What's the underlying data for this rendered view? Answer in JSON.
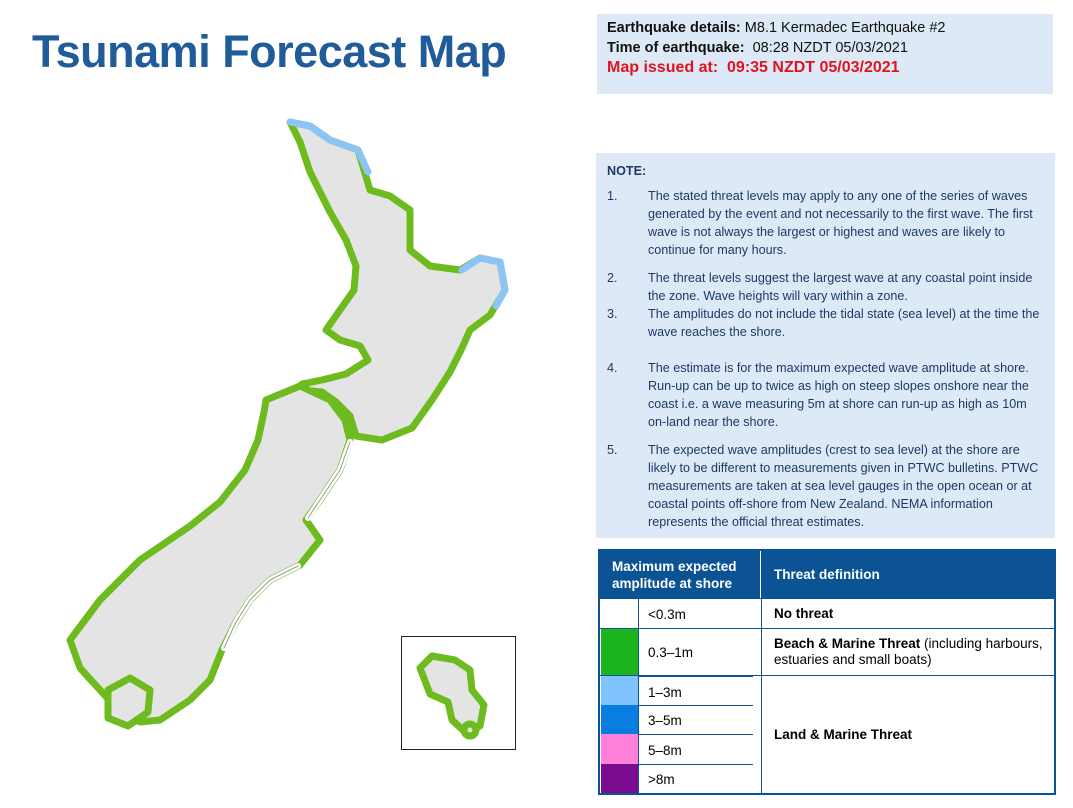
{
  "title": "Tsunami Forecast Map",
  "details": {
    "earthquake_label": "Earthquake details:",
    "earthquake_value": "M8.1 Kermadec Earthquake #2",
    "time_label": "Time of earthquake:",
    "time_value": "08:28 NZDT 05/03/2021",
    "issued_label": "Map issued at:",
    "issued_value": "09:35 NZDT 05/03/2021"
  },
  "note": {
    "heading": "NOTE:",
    "items": [
      {
        "number": "1.",
        "text": "The stated threat levels may apply to any one of the series of waves generated by the event and not necessarily to the first wave. The first wave is not always the largest or highest and waves are likely to continue for many hours."
      },
      {
        "number": "2.",
        "text": "The threat levels suggest the largest wave at any coastal point inside the zone. Wave heights will vary within a zone."
      },
      {
        "number": "3.",
        "text": "The amplitudes do not include the tidal state (sea level) at the time the wave reaches the shore."
      },
      {
        "number": "4.",
        "text": "The estimate is for the maximum expected wave amplitude at shore. Run-up can be up to twice as high on steep slopes onshore near the coast i.e. a wave measuring 5m at shore can run-up as high as 10m on-land near the shore."
      },
      {
        "number": "5.",
        "text": "The expected wave amplitudes (crest to sea level) at the shore are likely to be different to measurements given in PTWC bulletins. PTWC measurements are taken at sea level gauges in the open ocean or at coastal points off-shore from New Zealand. NEMA information represents the official threat estimates."
      }
    ]
  },
  "legend": {
    "headers": [
      "Maximum expected amplitude at shore",
      "Threat definition"
    ],
    "rows": [
      {
        "amplitude": "<0.3m",
        "color": "#ffffff"
      },
      {
        "amplitude": "0.3–1m",
        "color": "#1db51d"
      },
      {
        "amplitude": "1–3m",
        "color": "#7fc4ff"
      },
      {
        "amplitude": "3–5m",
        "color": "#0a7ee0"
      },
      {
        "amplitude": "5–8m",
        "color": "#ff80d8"
      },
      {
        "amplitude": ">8m",
        "color": "#7a0c8f"
      }
    ],
    "threats": [
      {
        "bold": "No threat"
      },
      {
        "bold": "Beach & Marine Threat",
        "rest": " (including harbours, estuaries and small boats)"
      },
      {
        "bold": "Land & Marine Threat"
      }
    ]
  }
}
